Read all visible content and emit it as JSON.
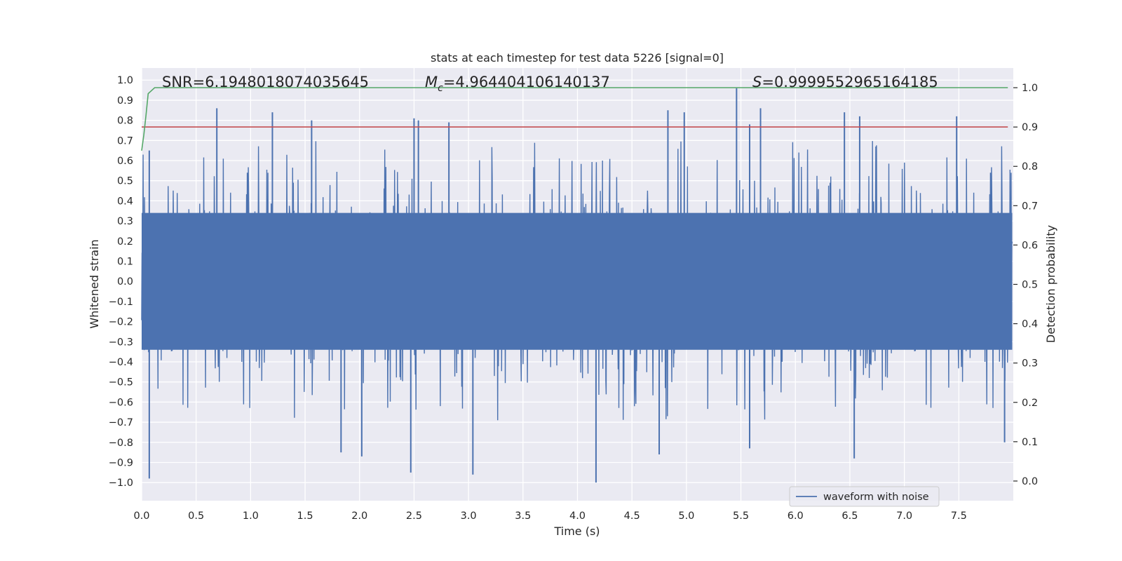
{
  "chart_data": {
    "type": "line",
    "title": "stats at each timestep for test data 5226 [signal=0]",
    "xlabel": "Time (s)",
    "ylabel_left": "Whitened strain",
    "ylabel_right": "Detection probability",
    "xlim": [
      0.0,
      8.0
    ],
    "ylim_left": [
      -1.09,
      1.06
    ],
    "ylim_right": [
      -0.05,
      1.05
    ],
    "x_ticks": [
      0.0,
      0.5,
      1.0,
      1.5,
      2.0,
      2.5,
      3.0,
      3.5,
      4.0,
      4.5,
      5.0,
      5.5,
      6.0,
      6.5,
      7.0,
      7.5
    ],
    "x_tick_labels": [
      "0.0",
      "0.5",
      "1.0",
      "1.5",
      "2.0",
      "2.5",
      "3.0",
      "3.5",
      "4.0",
      "4.5",
      "5.0",
      "5.5",
      "6.0",
      "6.5",
      "7.0",
      "7.5"
    ],
    "y_left_ticks": [
      1.0,
      0.9,
      0.8,
      0.7,
      0.6,
      0.5,
      0.4,
      0.3,
      0.2,
      0.1,
      0.0,
      -0.1,
      -0.2,
      -0.3,
      -0.4,
      -0.5,
      -0.6,
      -0.7,
      -0.8,
      -0.9,
      -1.0
    ],
    "y_left_tick_labels": [
      "1.0",
      "0.9",
      "0.8",
      "0.7",
      "0.6",
      "0.5",
      "0.4",
      "0.3",
      "0.2",
      "0.1",
      "0.0",
      "−0.1",
      "−0.2",
      "−0.3",
      "−0.4",
      "−0.5",
      "−0.6",
      "−0.7",
      "−0.8",
      "−0.9",
      "−1.0"
    ],
    "y_right_ticks": [
      1.0,
      0.9,
      0.8,
      0.7,
      0.6,
      0.5,
      0.4,
      0.3,
      0.2,
      0.1,
      0.0
    ],
    "y_right_tick_labels": [
      "1.0",
      "0.9",
      "0.8",
      "0.7",
      "0.6",
      "0.5",
      "0.4",
      "0.3",
      "0.2",
      "0.1",
      "0.0"
    ],
    "series": [
      {
        "name": "waveform with noise",
        "axis": "left",
        "color": "#4c72b0",
        "description": "dense noisy whitened strain, roughly within ±0.6 with spikes near ±1",
        "seed": 5226,
        "x_range": [
          0.0,
          7.99
        ],
        "envelope": 0.36,
        "peaks": [
          {
            "x": 0.07,
            "y": 0.65
          },
          {
            "x": 0.69,
            "y": 0.86
          },
          {
            "x": 1.2,
            "y": 0.84
          },
          {
            "x": 1.56,
            "y": 0.8
          },
          {
            "x": 2.5,
            "y": 0.81
          },
          {
            "x": 2.54,
            "y": 0.8
          },
          {
            "x": 2.82,
            "y": 0.79
          },
          {
            "x": 4.83,
            "y": 0.85
          },
          {
            "x": 4.98,
            "y": 0.84
          },
          {
            "x": 5.46,
            "y": 0.96
          },
          {
            "x": 5.58,
            "y": 0.78
          },
          {
            "x": 5.68,
            "y": 0.86
          },
          {
            "x": 6.45,
            "y": 0.84
          },
          {
            "x": 6.59,
            "y": 0.82
          },
          {
            "x": 7.48,
            "y": 0.82
          },
          {
            "x": 0.07,
            "y": -0.98
          },
          {
            "x": 1.83,
            "y": -0.85
          },
          {
            "x": 2.02,
            "y": -0.87
          },
          {
            "x": 2.47,
            "y": -0.95
          },
          {
            "x": 3.04,
            "y": -0.96
          },
          {
            "x": 4.17,
            "y": -1.0
          },
          {
            "x": 4.75,
            "y": -0.86
          },
          {
            "x": 5.58,
            "y": -0.83
          },
          {
            "x": 6.54,
            "y": -0.88
          },
          {
            "x": 7.92,
            "y": -0.8
          }
        ]
      },
      {
        "name": "detection probability",
        "axis": "right",
        "color": "#55a868",
        "x": [
          0.0,
          0.02,
          0.04,
          0.06,
          0.08,
          0.12,
          0.5,
          1.0,
          2.0,
          3.0,
          4.0,
          5.0,
          6.0,
          7.0,
          7.95
        ],
        "values": [
          0.84,
          0.88,
          0.93,
          0.985,
          0.99,
          1.0,
          1.0,
          1.0,
          1.0,
          1.0,
          1.0,
          1.0,
          1.0,
          1.0,
          1.0
        ]
      },
      {
        "name": "threshold",
        "axis": "right",
        "color": "#c44e52",
        "x": [
          0.0,
          7.95
        ],
        "values": [
          0.9,
          0.9
        ]
      }
    ],
    "annotations": [
      {
        "label": "SNR",
        "text": "SNR=6.1948018074035645"
      },
      {
        "label": "Mc",
        "text_base": "M",
        "text_sub": "c",
        "text_rest": "=4.964404106140137"
      },
      {
        "label": "S",
        "text_base": "S",
        "text_rest": "=0.9999552965164185"
      }
    ],
    "legend": {
      "entries": [
        "waveform with noise"
      ],
      "placement": "lower-right"
    },
    "grid": true,
    "colors": {
      "axes_background": "#eaeaf2",
      "grid": "#ffffff",
      "text": "#262626"
    }
  }
}
